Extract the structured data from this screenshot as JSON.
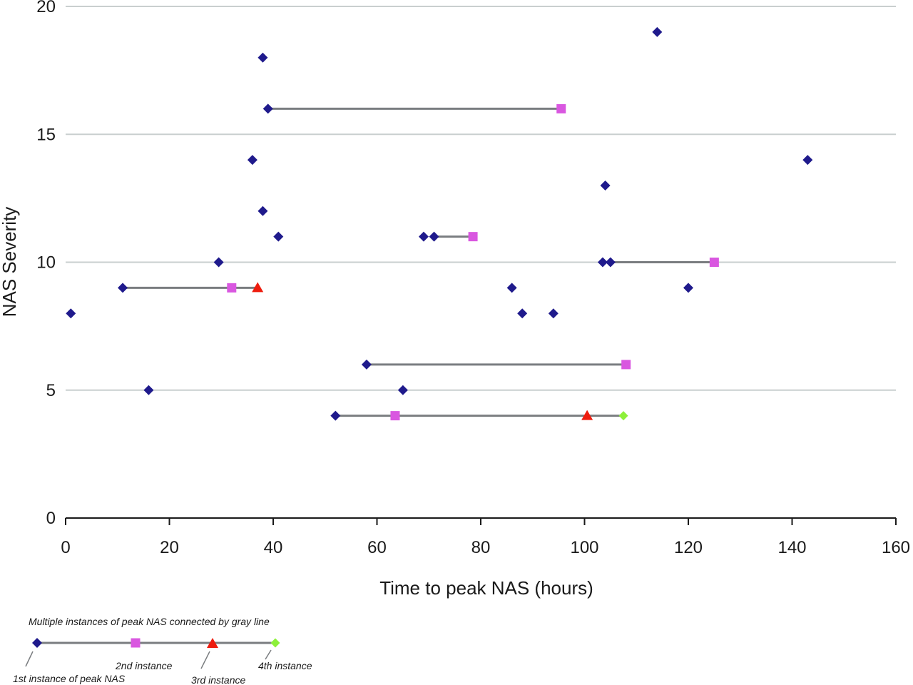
{
  "chart_data": {
    "type": "scatter",
    "xlabel": "Time to peak NAS (hours)",
    "ylabel": "NAS Severity",
    "xlim": [
      0,
      160
    ],
    "ylim": [
      0,
      20
    ],
    "x_ticks": [
      "0",
      "20",
      "40",
      "60",
      "80",
      "100",
      "120",
      "140",
      "160"
    ],
    "y_ticks": [
      "0",
      "5",
      "10",
      "15",
      "20"
    ],
    "x_tick_values": [
      0,
      20,
      40,
      60,
      80,
      100,
      120,
      140,
      160
    ],
    "y_tick_values": [
      0,
      5,
      10,
      15,
      20
    ],
    "grid": "horizontal",
    "colors": {
      "instance_1": "#1f1a8c",
      "instance_2": "#d957e0",
      "instance_3": "#ee1c0e",
      "instance_4": "#8df03a",
      "connector": "#7a7d80",
      "gridline": "#c9cfcf"
    },
    "single_instances": [
      {
        "x": 1,
        "y": 8
      },
      {
        "x": 16,
        "y": 5
      },
      {
        "x": 29.5,
        "y": 10
      },
      {
        "x": 36,
        "y": 14
      },
      {
        "x": 38,
        "y": 18
      },
      {
        "x": 38,
        "y": 12
      },
      {
        "x": 41,
        "y": 11
      },
      {
        "x": 65,
        "y": 5
      },
      {
        "x": 69,
        "y": 11
      },
      {
        "x": 86,
        "y": 9
      },
      {
        "x": 88,
        "y": 8
      },
      {
        "x": 94,
        "y": 8
      },
      {
        "x": 103.5,
        "y": 10
      },
      {
        "x": 104,
        "y": 13
      },
      {
        "x": 114,
        "y": 19
      },
      {
        "x": 120,
        "y": 9
      },
      {
        "x": 143,
        "y": 14
      }
    ],
    "multi_instances": [
      {
        "y": 16,
        "x": [
          39,
          95.5
        ]
      },
      {
        "y": 11,
        "x": [
          71,
          78.5
        ]
      },
      {
        "y": 10,
        "x": [
          105,
          125
        ]
      },
      {
        "y": 9,
        "x": [
          11,
          32,
          37
        ]
      },
      {
        "y": 6,
        "x": [
          58,
          108
        ]
      },
      {
        "y": 4,
        "x": [
          52,
          63.5,
          100.5,
          107.5
        ]
      }
    ],
    "legend": {
      "title": "Multiple instances of peak NAS connected by gray line",
      "entries": [
        "1st instance of peak NAS",
        "2nd instance",
        "3rd instance",
        "4th instance"
      ]
    }
  }
}
